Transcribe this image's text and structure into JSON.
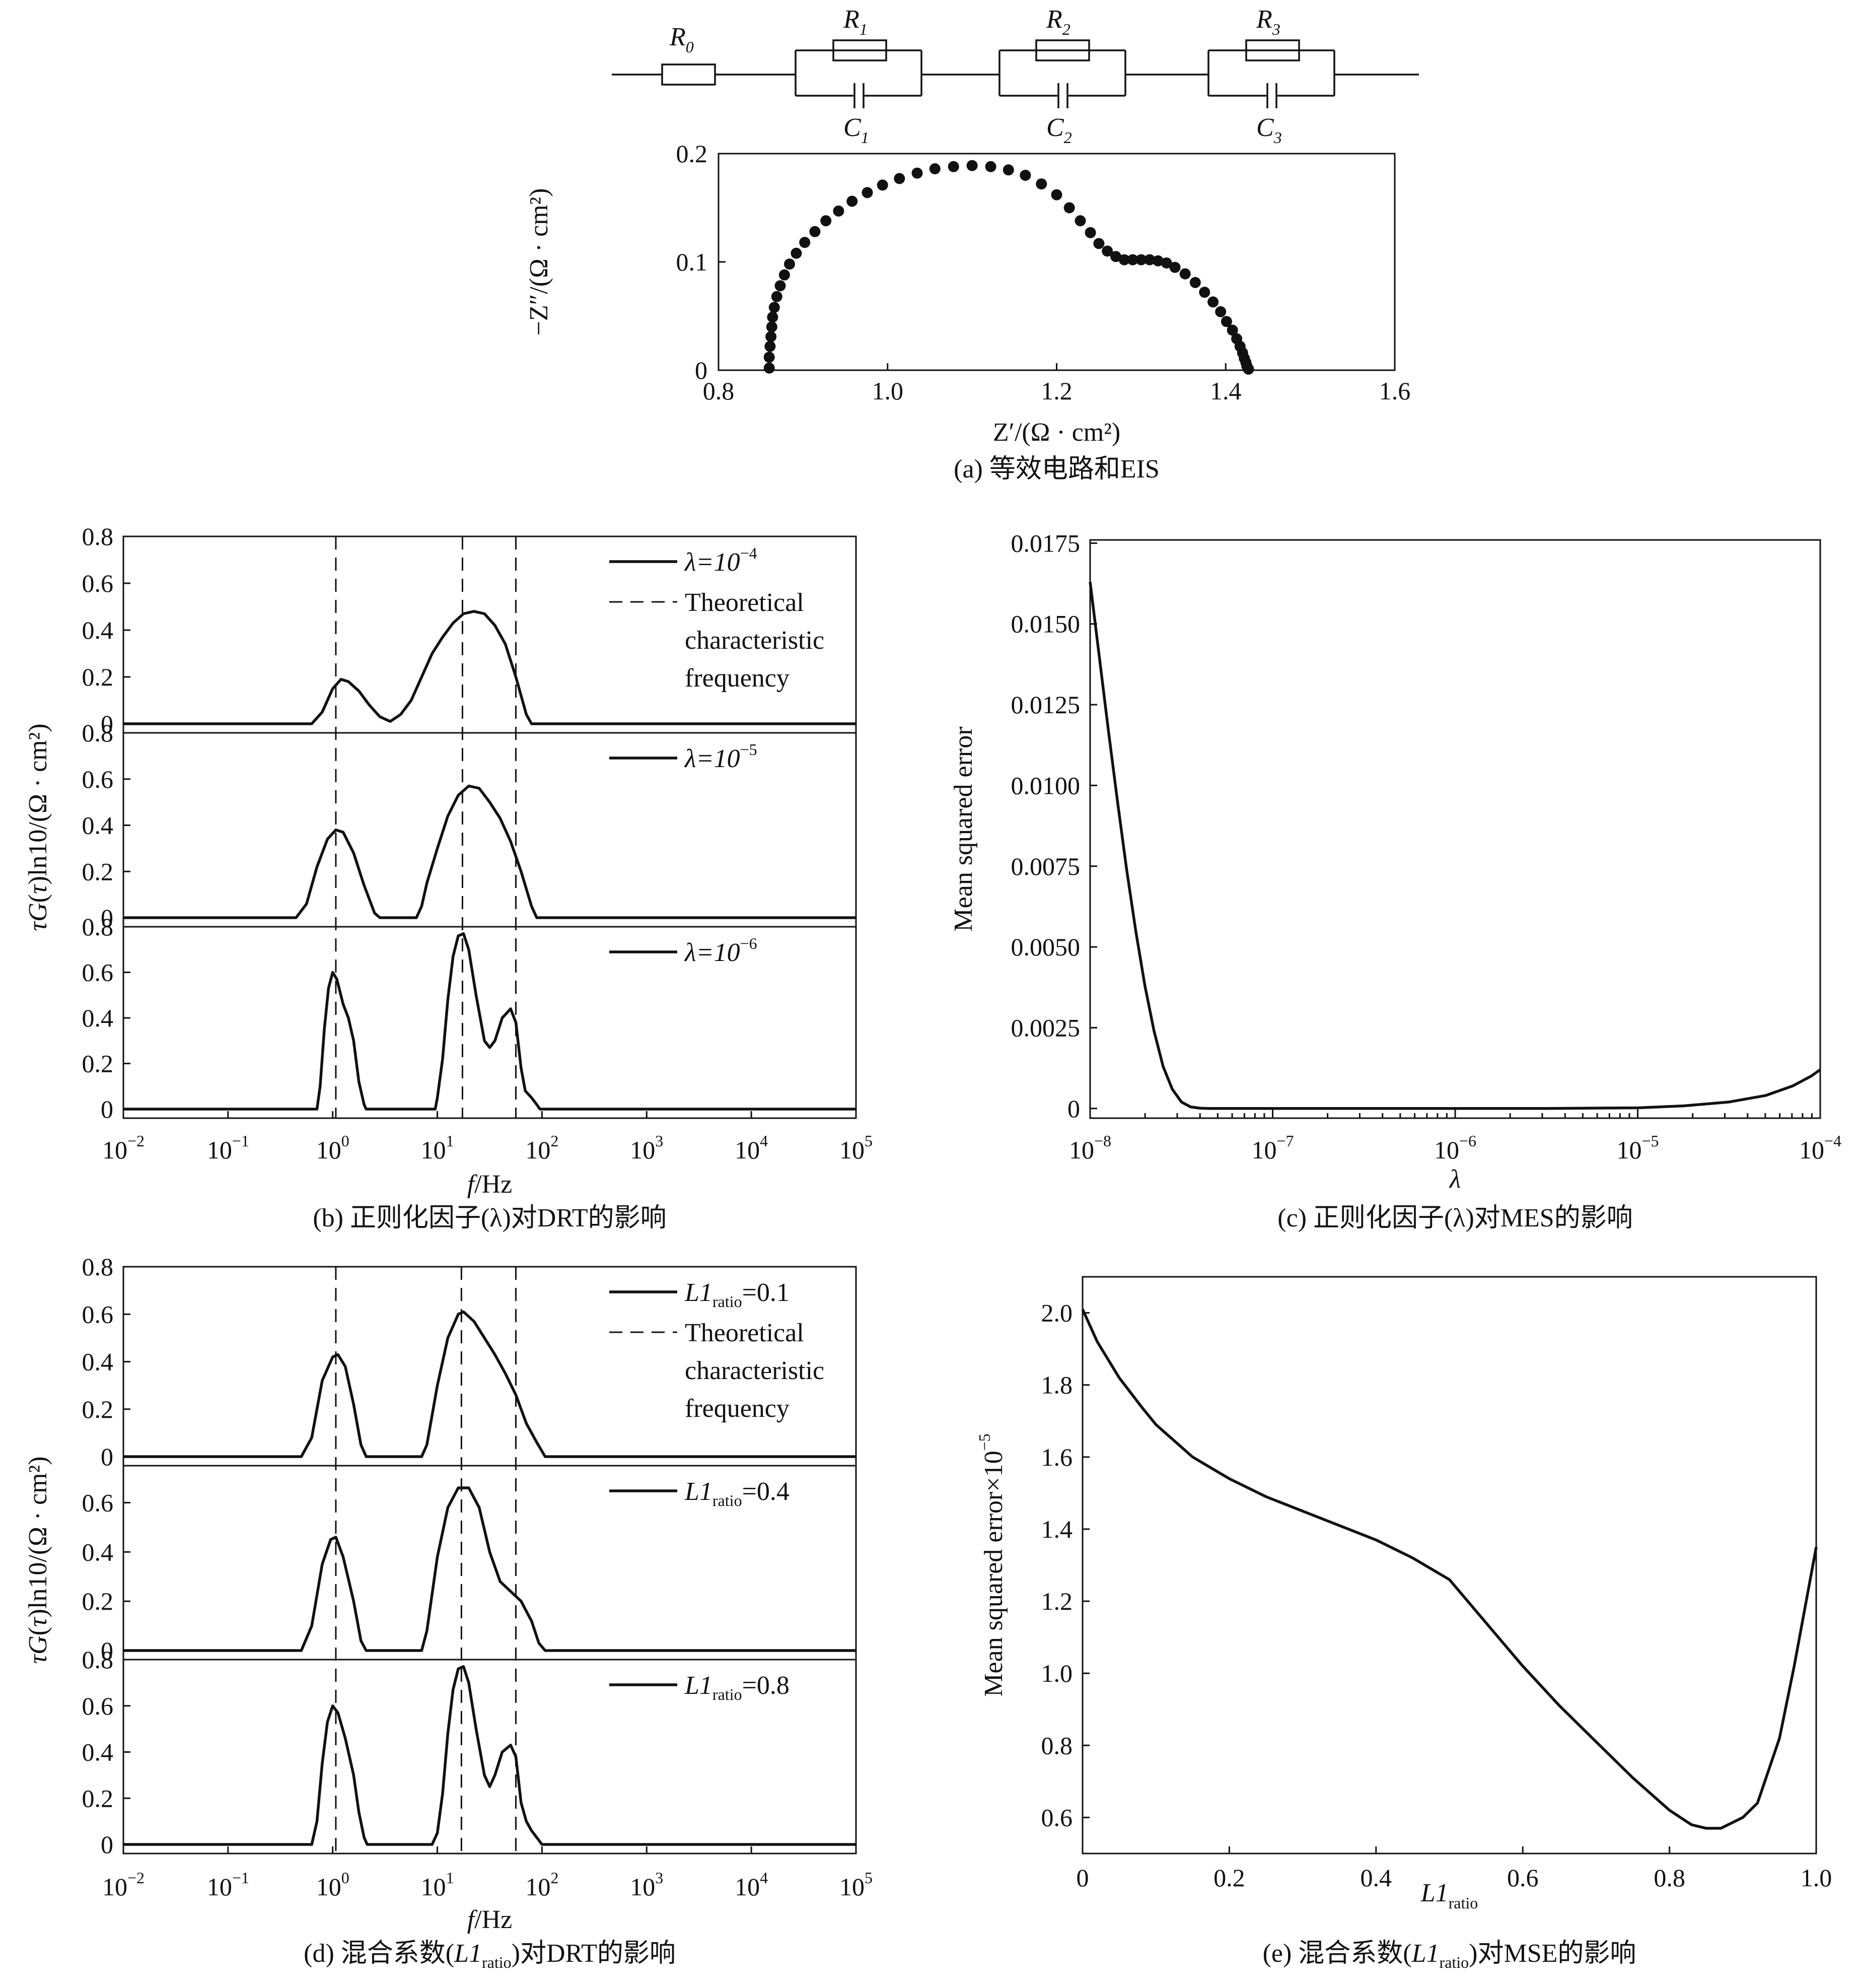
{
  "circuit": {
    "R0": {
      "base": "R",
      "sub": "0"
    },
    "R1": {
      "base": "R",
      "sub": "1"
    },
    "R2": {
      "base": "R",
      "sub": "2"
    },
    "R3": {
      "base": "R",
      "sub": "3"
    },
    "C1": {
      "base": "C",
      "sub": "1"
    },
    "C2": {
      "base": "C",
      "sub": "2"
    },
    "C3": {
      "base": "C",
      "sub": "3"
    }
  },
  "chart_data": [
    {
      "id": "a",
      "type": "scatter",
      "caption": "(a) 等效电路和EIS",
      "xlabel": "Z′/(Ω · cm²)",
      "ylabel": "−Z″/(Ω · cm²)",
      "xlim": [
        0.8,
        1.6
      ],
      "ylim": [
        0,
        0.2
      ],
      "xticks": [
        "0.8",
        "1.0",
        "1.2",
        "1.4",
        "1.6"
      ],
      "xtick_values": [
        0.8,
        1.0,
        1.2,
        1.4,
        1.6
      ],
      "yticks": [
        "0",
        "0.1",
        "0.2"
      ],
      "ytick_values": [
        0,
        0.1,
        0.2
      ],
      "x": [
        0.86,
        0.86,
        0.861,
        0.862,
        0.863,
        0.864,
        0.866,
        0.869,
        0.873,
        0.878,
        0.884,
        0.892,
        0.902,
        0.914,
        0.927,
        0.942,
        0.958,
        0.976,
        0.994,
        1.014,
        1.035,
        1.056,
        1.078,
        1.1,
        1.122,
        1.143,
        1.163,
        1.182,
        1.2,
        1.215,
        1.228,
        1.24,
        1.25,
        1.26,
        1.27,
        1.28,
        1.29,
        1.3,
        1.31,
        1.32,
        1.33,
        1.34,
        1.352,
        1.364,
        1.375,
        1.385,
        1.394,
        1.401,
        1.408,
        1.413,
        1.417,
        1.42,
        1.422,
        1.424,
        1.425,
        1.426,
        1.427
      ],
      "y": [
        0.002,
        0.012,
        0.022,
        0.031,
        0.04,
        0.049,
        0.058,
        0.068,
        0.078,
        0.088,
        0.098,
        0.108,
        0.118,
        0.128,
        0.138,
        0.147,
        0.156,
        0.164,
        0.171,
        0.177,
        0.182,
        0.186,
        0.188,
        0.189,
        0.188,
        0.185,
        0.18,
        0.172,
        0.162,
        0.15,
        0.138,
        0.127,
        0.117,
        0.11,
        0.105,
        0.102,
        0.102,
        0.102,
        0.102,
        0.101,
        0.099,
        0.095,
        0.089,
        0.081,
        0.072,
        0.063,
        0.054,
        0.045,
        0.037,
        0.029,
        0.022,
        0.016,
        0.011,
        0.007,
        0.004,
        0.002,
        0.001
      ]
    },
    {
      "id": "b",
      "type": "line",
      "caption": "(b) 正则化因子(λ)对DRT的影响",
      "xlabel": "f/Hz",
      "ylabel": "τG(τ)ln10/(Ω · cm²)",
      "xscale": "log",
      "xlim": [
        -2,
        5
      ],
      "xticks": [
        "10",
        "10",
        "10",
        "10",
        "10",
        "10",
        "10",
        "10"
      ],
      "xtick_exponents": [
        "−2",
        "−1",
        "0",
        "1",
        "2",
        "3",
        "4",
        "5"
      ],
      "xtick_values": [
        -2,
        -1,
        0,
        1,
        2,
        3,
        4,
        5
      ],
      "vlines_log10_hz": [
        0.03,
        1.24,
        1.75
      ],
      "legend_position": "top-right",
      "legend_dashed_entry": [
        "Theoretical",
        "characteristic",
        "frequency"
      ],
      "panels": [
        {
          "label_prefix": "λ=10",
          "label_exp": "−4",
          "ylim": [
            0,
            0.8
          ],
          "yticks": [
            "0",
            "0.2",
            "0.4",
            "0.6",
            "0.8"
          ],
          "ytick_values": [
            0,
            0.2,
            0.4,
            0.6,
            0.8
          ],
          "x": [
            -2,
            -0.2,
            -0.1,
            0,
            0.08,
            0.15,
            0.25,
            0.35,
            0.45,
            0.55,
            0.65,
            0.75,
            0.85,
            0.95,
            1.05,
            1.15,
            1.25,
            1.35,
            1.45,
            1.55,
            1.65,
            1.75,
            1.85,
            1.9,
            5
          ],
          "y": [
            0,
            0,
            0.05,
            0.15,
            0.19,
            0.18,
            0.14,
            0.08,
            0.03,
            0.01,
            0.04,
            0.1,
            0.2,
            0.3,
            0.37,
            0.43,
            0.47,
            0.48,
            0.47,
            0.42,
            0.34,
            0.2,
            0.04,
            0,
            0
          ]
        },
        {
          "label_prefix": "λ=10",
          "label_exp": "−5",
          "ylim": [
            0,
            0.8
          ],
          "yticks": [
            "0",
            "0.2",
            "0.4",
            "0.6",
            "0.8"
          ],
          "ytick_values": [
            0,
            0.2,
            0.4,
            0.6,
            0.8
          ],
          "x": [
            -2,
            -0.35,
            -0.25,
            -0.15,
            -0.05,
            0.03,
            0.1,
            0.2,
            0.3,
            0.4,
            0.45,
            0.8,
            0.85,
            0.9,
            1.0,
            1.1,
            1.2,
            1.3,
            1.4,
            1.5,
            1.6,
            1.7,
            1.8,
            1.9,
            1.95,
            5
          ],
          "y": [
            0,
            0,
            0.06,
            0.22,
            0.34,
            0.38,
            0.37,
            0.28,
            0.14,
            0.02,
            0,
            0,
            0.05,
            0.15,
            0.3,
            0.44,
            0.53,
            0.57,
            0.56,
            0.5,
            0.43,
            0.33,
            0.2,
            0.05,
            0,
            0
          ]
        },
        {
          "label_prefix": "λ=10",
          "label_exp": "−6",
          "ylim": [
            0,
            0.8
          ],
          "yticks": [
            "0",
            "0.2",
            "0.4",
            "0.6",
            "0.8"
          ],
          "ytick_values": [
            0,
            0.2,
            0.4,
            0.6,
            0.8
          ],
          "x": [
            -2,
            -0.15,
            -0.12,
            -0.08,
            -0.04,
            0.0,
            0.04,
            0.1,
            0.15,
            0.2,
            0.25,
            0.3,
            0.32,
            0.98,
            1.0,
            1.05,
            1.1,
            1.15,
            1.2,
            1.25,
            1.3,
            1.37,
            1.45,
            1.5,
            1.55,
            1.62,
            1.7,
            1.75,
            1.8,
            1.84,
            1.9,
            1.95,
            1.98,
            5
          ],
          "y": [
            0,
            0,
            0.1,
            0.35,
            0.53,
            0.6,
            0.57,
            0.46,
            0.4,
            0.3,
            0.12,
            0.02,
            0,
            0,
            0.05,
            0.22,
            0.48,
            0.67,
            0.76,
            0.77,
            0.7,
            0.5,
            0.3,
            0.27,
            0.3,
            0.4,
            0.44,
            0.38,
            0.18,
            0.08,
            0.05,
            0.02,
            0,
            0
          ]
        }
      ]
    },
    {
      "id": "c",
      "type": "line",
      "caption": "(c) 正则化因子(λ)对MES的影响",
      "xlabel": "λ",
      "ylabel": "Mean squared error",
      "xscale": "log",
      "xlim": [
        -8,
        -4
      ],
      "ylim": [
        -0.0003,
        0.0176
      ],
      "xticks": [
        "10",
        "10",
        "10",
        "10",
        "10"
      ],
      "xtick_exponents": [
        "−8",
        "−7",
        "−6",
        "−5",
        "−4"
      ],
      "xtick_values": [
        -8,
        -7,
        -6,
        -5,
        -4
      ],
      "yticks": [
        "0",
        "0.0025",
        "0.0050",
        "0.0075",
        "0.0100",
        "0.0125",
        "0.0150",
        "0.0175"
      ],
      "ytick_values": [
        0,
        0.0025,
        0.005,
        0.0075,
        0.01,
        0.0125,
        0.015,
        0.0175
      ],
      "x": [
        -8,
        -7.95,
        -7.9,
        -7.85,
        -7.8,
        -7.75,
        -7.7,
        -7.65,
        -7.6,
        -7.55,
        -7.5,
        -7.45,
        -7.4,
        -7.35,
        -7.3,
        -7.2,
        -7,
        -6.5,
        -6,
        -5.5,
        -5,
        -4.75,
        -4.5,
        -4.3,
        -4.15,
        -4.05,
        -4
      ],
      "y": [
        0.0163,
        0.014,
        0.0117,
        0.0095,
        0.0074,
        0.0055,
        0.0038,
        0.0024,
        0.0013,
        0.0006,
        0.0002,
        5e-05,
        1e-05,
        0.0,
        0.0,
        0.0,
        0.0,
        0.0,
        0.0,
        0.0,
        2e-05,
        8e-05,
        0.0002,
        0.0004,
        0.0007,
        0.001,
        0.0012
      ]
    },
    {
      "id": "d",
      "type": "line",
      "caption": "(d) 混合系数(L1ratio)对DRT的影响",
      "caption_parts": {
        "before": "(d) 混合系数(",
        "italic": "L1",
        "sub": "ratio",
        "after": ")对DRT的影响"
      },
      "xlabel": "f/Hz",
      "ylabel": "τG(τ)ln10/(Ω · cm²)",
      "xscale": "log",
      "xlim": [
        -2,
        5
      ],
      "xticks": [
        "10",
        "10",
        "10",
        "10",
        "10",
        "10",
        "10",
        "10"
      ],
      "xtick_exponents": [
        "−2",
        "−1",
        "0",
        "1",
        "2",
        "3",
        "4",
        "5"
      ],
      "xtick_values": [
        -2,
        -1,
        0,
        1,
        2,
        3,
        4,
        5
      ],
      "vlines_log10_hz": [
        0.03,
        1.23,
        1.75
      ],
      "legend_position": "top-right",
      "legend_dashed_entry": [
        "Theoretical",
        "characteristic",
        "frequency"
      ],
      "panels": [
        {
          "label_italic": "L1",
          "label_sub": "ratio",
          "label_value": "=0.1",
          "ylim": [
            0,
            0.8
          ],
          "yticks": [
            "0",
            "0.2",
            "0.4",
            "0.6",
            "0.8"
          ],
          "ytick_values": [
            0,
            0.2,
            0.4,
            0.6,
            0.8
          ],
          "x": [
            -2,
            -0.3,
            -0.2,
            -0.1,
            0.0,
            0.05,
            0.12,
            0.2,
            0.27,
            0.32,
            0.85,
            0.9,
            1.0,
            1.1,
            1.2,
            1.25,
            1.35,
            1.45,
            1.55,
            1.65,
            1.75,
            1.85,
            1.95,
            2.03,
            5
          ],
          "y": [
            0,
            0,
            0.08,
            0.32,
            0.42,
            0.43,
            0.38,
            0.22,
            0.05,
            0,
            0,
            0.05,
            0.3,
            0.5,
            0.6,
            0.61,
            0.57,
            0.5,
            0.43,
            0.35,
            0.26,
            0.14,
            0.06,
            0,
            0
          ]
        },
        {
          "label_italic": "L1",
          "label_sub": "ratio",
          "label_value": "=0.4",
          "ylim": [
            0,
            0.75
          ],
          "yticks": [
            "0",
            "0.2",
            "0.4",
            "0.6"
          ],
          "ytick_values": [
            0,
            0.2,
            0.4,
            0.6
          ],
          "x": [
            -2,
            -0.3,
            -0.2,
            -0.1,
            -0.02,
            0.03,
            0.1,
            0.2,
            0.27,
            0.32,
            0.85,
            0.9,
            1.0,
            1.1,
            1.2,
            1.3,
            1.4,
            1.5,
            1.6,
            1.7,
            1.8,
            1.9,
            1.97,
            2.03,
            5
          ],
          "y": [
            0,
            0,
            0.1,
            0.35,
            0.45,
            0.46,
            0.38,
            0.2,
            0.04,
            0,
            0,
            0.08,
            0.38,
            0.58,
            0.66,
            0.66,
            0.58,
            0.4,
            0.28,
            0.24,
            0.2,
            0.12,
            0.03,
            0,
            0
          ]
        },
        {
          "label_italic": "L1",
          "label_sub": "ratio",
          "label_value": "=0.8",
          "ylim": [
            0,
            0.8
          ],
          "yticks": [
            "0",
            "0.2",
            "0.4",
            "0.6",
            "0.8"
          ],
          "ytick_values": [
            0,
            0.2,
            0.4,
            0.6,
            0.8
          ],
          "x": [
            -2,
            -0.2,
            -0.15,
            -0.1,
            -0.05,
            0.0,
            0.05,
            0.12,
            0.2,
            0.25,
            0.3,
            0.33,
            0.95,
            1.0,
            1.05,
            1.1,
            1.15,
            1.2,
            1.25,
            1.3,
            1.37,
            1.45,
            1.5,
            1.55,
            1.62,
            1.7,
            1.75,
            1.8,
            1.85,
            1.9,
            1.95,
            2.0,
            5
          ],
          "y": [
            0,
            0,
            0.1,
            0.35,
            0.53,
            0.6,
            0.57,
            0.46,
            0.3,
            0.14,
            0.03,
            0,
            0,
            0.05,
            0.22,
            0.48,
            0.67,
            0.76,
            0.77,
            0.7,
            0.5,
            0.3,
            0.25,
            0.3,
            0.4,
            0.43,
            0.38,
            0.18,
            0.1,
            0.06,
            0.03,
            0,
            0
          ]
        }
      ]
    },
    {
      "id": "e",
      "type": "line",
      "caption": "(e) 混合系数(L1ratio)对MSE的影响",
      "caption_parts": {
        "before": "(e) 混合系数(",
        "italic": "L1",
        "sub": "ratio",
        "after": ")对MSE的影响"
      },
      "xlabel": "L1ratio",
      "xlabel_parts": {
        "italic": "L1",
        "sub": "ratio"
      },
      "ylabel": "Mean squared error×10⁻⁵",
      "ylabel_parts": {
        "base": "Mean squared error×10",
        "sup": "−5"
      },
      "xlim": [
        0,
        1.0
      ],
      "ylim": [
        0.5,
        2.1
      ],
      "xticks": [
        "0",
        "0.2",
        "0.4",
        "0.6",
        "0.8",
        "1.0"
      ],
      "xtick_values": [
        0,
        0.2,
        0.4,
        0.6,
        0.8,
        1.0
      ],
      "yticks": [
        "0.6",
        "0.8",
        "1.0",
        "1.2",
        "1.4",
        "1.6",
        "1.8",
        "2.0"
      ],
      "ytick_values": [
        0.6,
        0.8,
        1.0,
        1.2,
        1.4,
        1.6,
        1.8,
        2.0
      ],
      "x": [
        0,
        0.02,
        0.05,
        0.08,
        0.1,
        0.15,
        0.2,
        0.25,
        0.3,
        0.35,
        0.4,
        0.45,
        0.5,
        0.55,
        0.6,
        0.65,
        0.7,
        0.75,
        0.8,
        0.83,
        0.85,
        0.87,
        0.9,
        0.92,
        0.95,
        0.97,
        1.0
      ],
      "y": [
        2.01,
        1.92,
        1.82,
        1.74,
        1.69,
        1.6,
        1.54,
        1.49,
        1.45,
        1.41,
        1.37,
        1.32,
        1.26,
        1.14,
        1.02,
        0.91,
        0.81,
        0.71,
        0.62,
        0.58,
        0.57,
        0.57,
        0.6,
        0.64,
        0.82,
        1.02,
        1.35
      ]
    }
  ]
}
